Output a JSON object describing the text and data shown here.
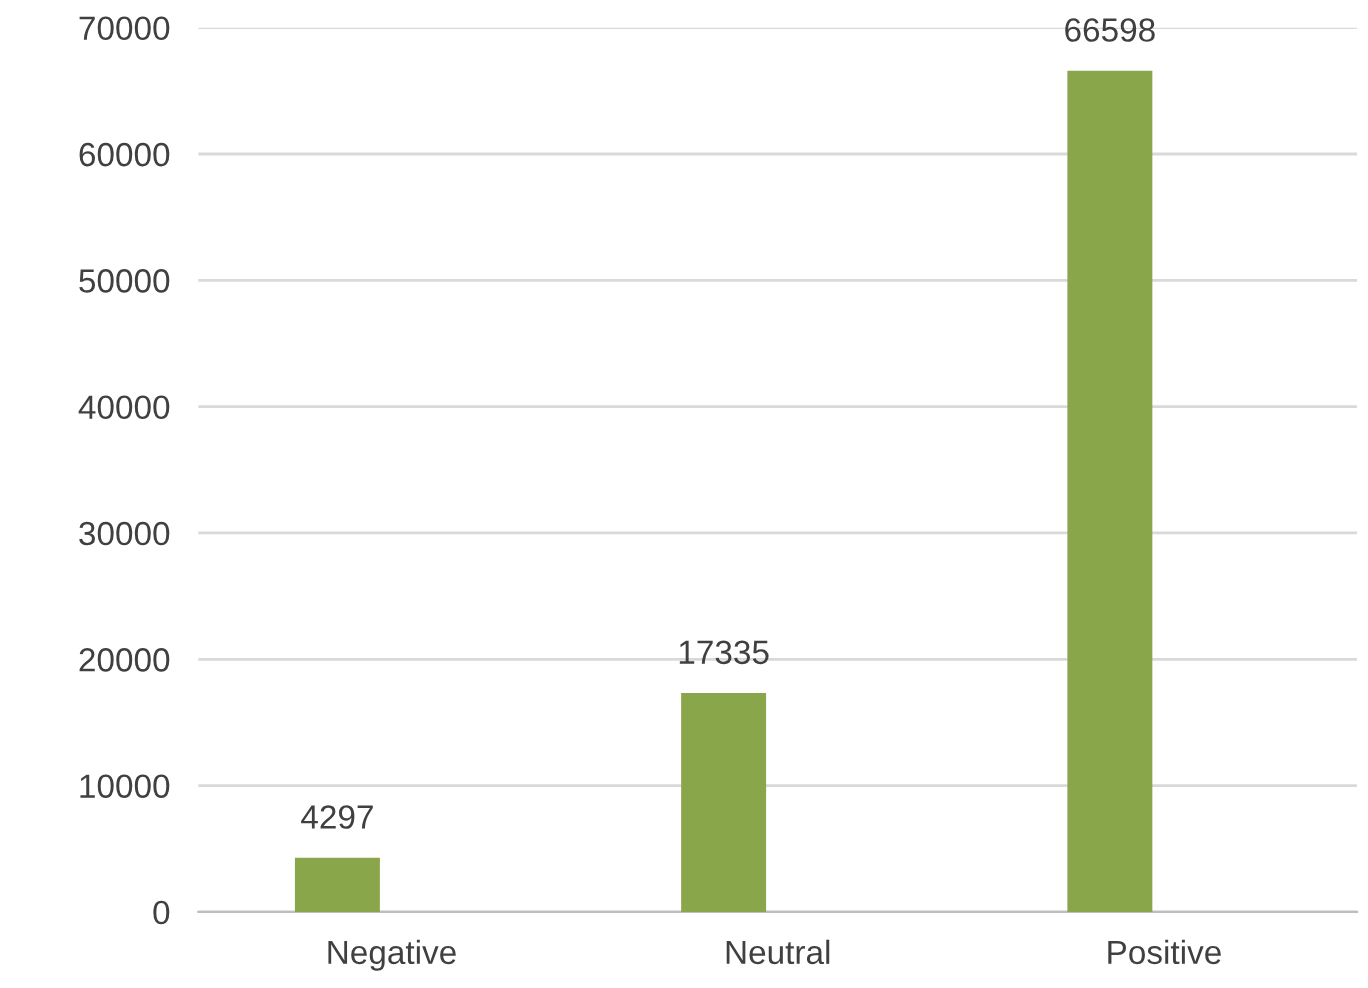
{
  "chart_data": {
    "type": "bar",
    "categories": [
      "Negative",
      "Neutral",
      "Positive"
    ],
    "values": [
      4297,
      17335,
      66598
    ],
    "color": "#8aa64b",
    "ylim": [
      0,
      70000
    ],
    "yticks": [
      0,
      10000,
      20000,
      30000,
      40000,
      50000,
      60000,
      70000
    ],
    "grid": "y",
    "data_labels": true,
    "legend": false
  }
}
